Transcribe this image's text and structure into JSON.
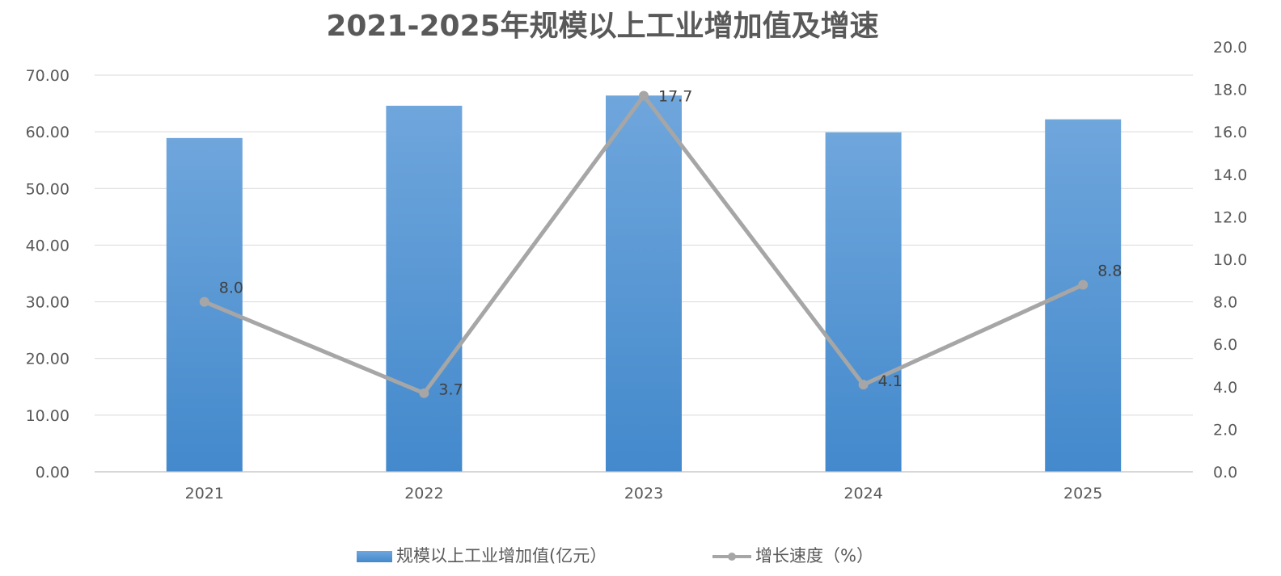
{
  "chart_data": {
    "type": "bar",
    "title": "2021-2025年规模以上工业增加值及增速",
    "categories": [
      "2021",
      "2022",
      "2023",
      "2024",
      "2025"
    ],
    "series": [
      {
        "name": "规模以上工业增加值(亿元）",
        "type": "bar",
        "axis": "left",
        "values": [
          58.9,
          64.6,
          66.4,
          59.9,
          62.2
        ],
        "color": "#5b9bd5"
      },
      {
        "name": "增长速度（%）",
        "type": "line",
        "axis": "right",
        "values": [
          8.0,
          3.7,
          17.7,
          4.1,
          8.8
        ],
        "data_labels": [
          "8.0",
          "3.7",
          "17.7",
          "4.1",
          "8.8"
        ],
        "color": "#a6a6a6"
      }
    ],
    "y_left": {
      "range": [
        0,
        70
      ],
      "ticks": [
        "0.00",
        "10.00",
        "20.00",
        "30.00",
        "40.00",
        "50.00",
        "60.00",
        "70.00"
      ]
    },
    "y_right": {
      "range": [
        0,
        20
      ],
      "ticks": [
        "0.0",
        "2.0",
        "4.0",
        "6.0",
        "8.0",
        "10.0",
        "12.0",
        "14.0",
        "16.0",
        "18.0",
        "20.0"
      ]
    },
    "grid": true,
    "legend_position": "bottom"
  }
}
